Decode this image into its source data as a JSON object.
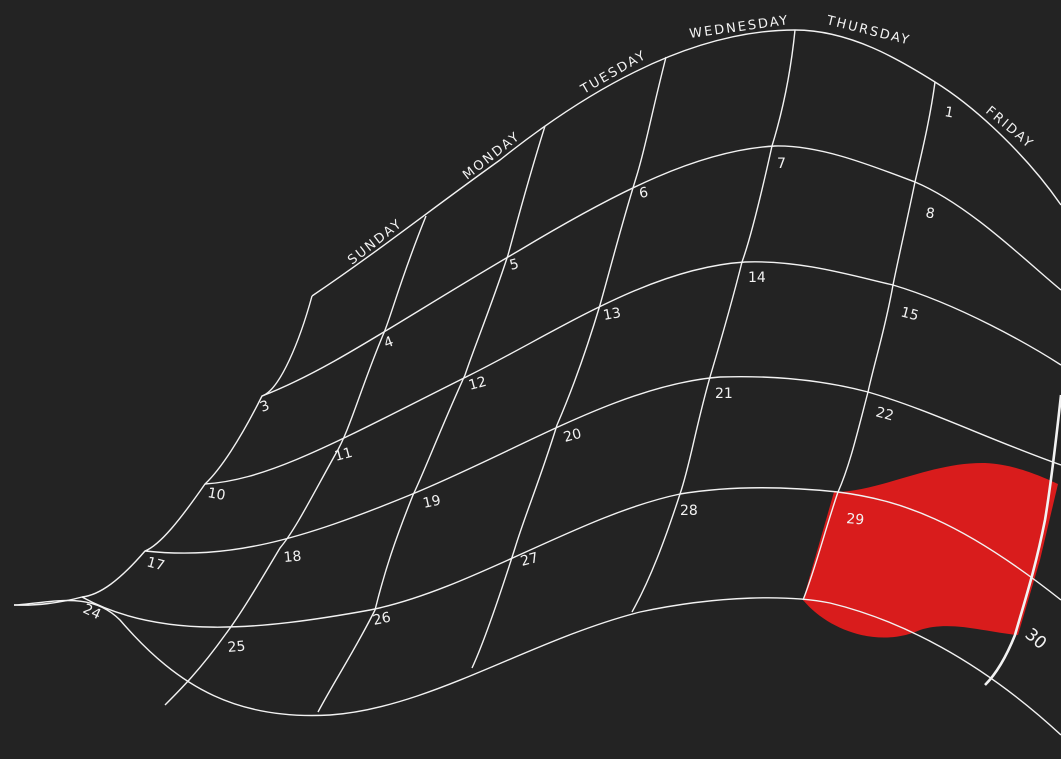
{
  "colors": {
    "background": "#232323",
    "grid": "#f2f2f2",
    "highlight": "#d91c1c"
  },
  "days": [
    "SUNDAY",
    "MONDAY",
    "TUESDAY",
    "WEDNESDAY",
    "THURSDAY",
    "FRIDAY"
  ],
  "dates": {
    "d1": "1",
    "d3": "3",
    "d4": "4",
    "d5": "5",
    "d6": "6",
    "d7": "7",
    "d8": "8",
    "d10": "10",
    "d11": "11",
    "d12": "12",
    "d13": "13",
    "d14": "14",
    "d15": "15",
    "d17": "17",
    "d18": "18",
    "d19": "19",
    "d20": "20",
    "d21": "21",
    "d22": "22",
    "d24": "24",
    "d25": "25",
    "d26": "26",
    "d27": "27",
    "d28": "28",
    "d29": "29",
    "d30": "30"
  },
  "highlighted_date": "29"
}
